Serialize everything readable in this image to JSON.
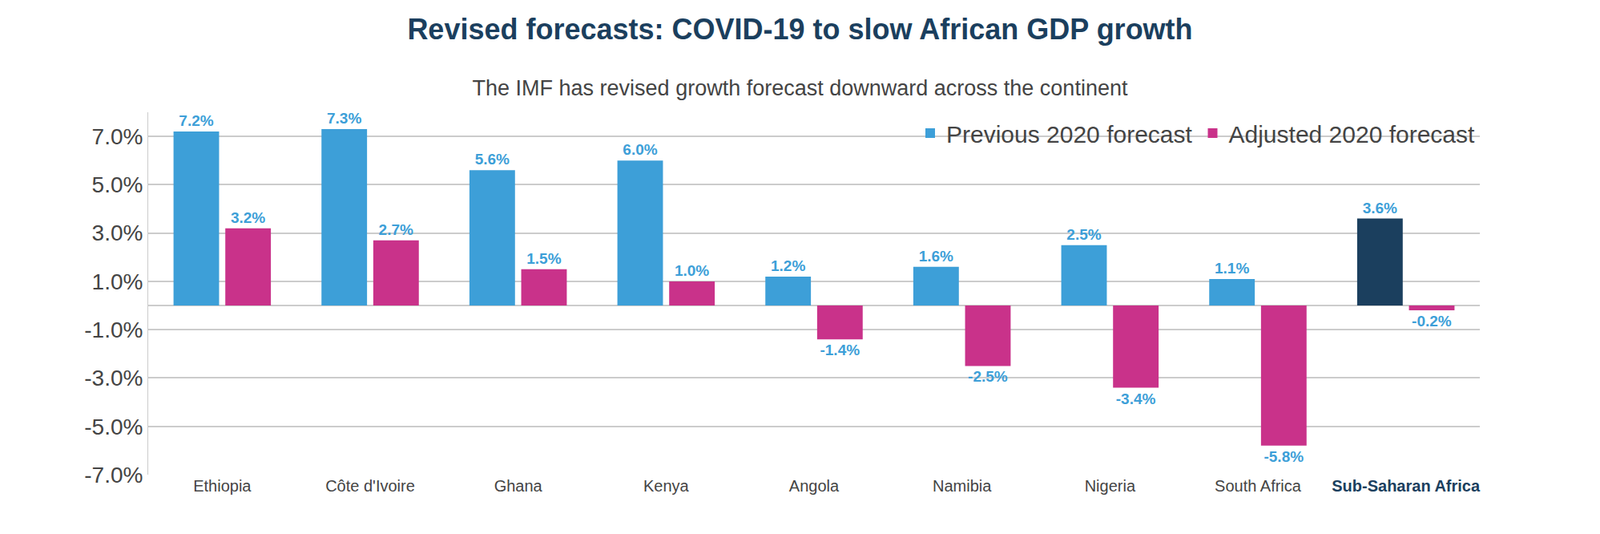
{
  "chart_data": {
    "type": "bar",
    "title": "Revised forecasts: COVID-19 to slow African GDP growth",
    "subtitle": "The IMF has revised growth forecast downward across the continent",
    "categories": [
      "Ethiopia",
      "Côte d'Ivoire",
      "Ghana",
      "Kenya",
      "Angola",
      "Namibia",
      "Nigeria",
      "South Africa",
      "Sub-Saharan Africa"
    ],
    "series": [
      {
        "name": "Previous 2020 forecast",
        "color": "#3d9fd8",
        "colors": [
          "#3d9fd8",
          "#3d9fd8",
          "#3d9fd8",
          "#3d9fd8",
          "#3d9fd8",
          "#3d9fd8",
          "#3d9fd8",
          "#3d9fd8",
          "#1b3f5e"
        ],
        "values": [
          7.2,
          7.3,
          5.6,
          6.0,
          1.2,
          1.6,
          2.5,
          1.1,
          3.6
        ],
        "value_labels": [
          "7.2%",
          "7.3%",
          "5.6%",
          "6.0%",
          "1.2%",
          "1.6%",
          "2.5%",
          "1.1%",
          "3.6%"
        ]
      },
      {
        "name": "Adjusted 2020 forecast",
        "color": "#c9328a",
        "values": [
          3.2,
          2.7,
          1.5,
          1.0,
          -1.4,
          -2.5,
          -3.4,
          -5.8,
          -0.2
        ],
        "value_labels": [
          "3.2%",
          "2.7%",
          "1.5%",
          "1.0%",
          "-1.4%",
          "-2.5%",
          "-3.4%",
          "-5.8%",
          "-0.2%"
        ]
      }
    ],
    "ylim": [
      -7,
      8
    ],
    "yticks": [
      {
        "value": -7,
        "label": "-7.0%"
      },
      {
        "value": -5,
        "label": "-5.0%"
      },
      {
        "value": -3,
        "label": "-3.0%"
      },
      {
        "value": -1,
        "label": "-1.0%"
      },
      {
        "value": 1,
        "label": "1.0%"
      },
      {
        "value": 3,
        "label": "3.0%"
      },
      {
        "value": 5,
        "label": "5.0%"
      },
      {
        "value": 7,
        "label": "7.0%"
      }
    ],
    "grid": true,
    "legend": "top right",
    "data_labels": true
  }
}
